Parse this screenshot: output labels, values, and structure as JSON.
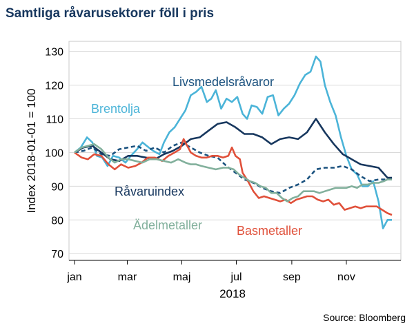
{
  "chart_data": {
    "type": "line",
    "title": "Samtliga råvarusektorer föll i pris",
    "ylabel": "Index 2018-01-01 = 100",
    "xlabel": "2018",
    "ylim": [
      68,
      133
    ],
    "yticks": [
      70,
      80,
      90,
      100,
      110,
      120,
      130
    ],
    "xticks": [
      {
        "label": "jan",
        "day": 0
      },
      {
        "label": "mar",
        "day": 59
      },
      {
        "label": "maj",
        "day": 120
      },
      {
        "label": "jul",
        "day": 181
      },
      {
        "label": "sep",
        "day": 243
      },
      {
        "label": "nov",
        "day": 304
      }
    ],
    "xlim": [
      0,
      365
    ],
    "grid": true,
    "source": "Source: Bloomberg",
    "series": [
      {
        "name": "Brentolja",
        "color": "#4bb4d8",
        "dash": "",
        "points": [
          [
            0,
            100
          ],
          [
            7,
            101.5
          ],
          [
            14,
            104.5
          ],
          [
            20,
            103
          ],
          [
            25,
            99
          ],
          [
            31,
            98.5
          ],
          [
            37,
            96
          ],
          [
            43,
            99
          ],
          [
            50,
            98.5
          ],
          [
            57,
            97
          ],
          [
            63,
            99
          ],
          [
            70,
            101
          ],
          [
            76,
            103
          ],
          [
            83,
            101.5
          ],
          [
            88,
            100.5
          ],
          [
            95,
            99.5
          ],
          [
            100,
            103
          ],
          [
            106,
            106
          ],
          [
            112,
            107.5
          ],
          [
            118,
            110
          ],
          [
            124,
            112.5
          ],
          [
            130,
            117
          ],
          [
            136,
            118
          ],
          [
            142,
            119.5
          ],
          [
            148,
            115
          ],
          [
            153,
            116
          ],
          [
            158,
            118.5
          ],
          [
            164,
            113
          ],
          [
            170,
            116
          ],
          [
            176,
            115
          ],
          [
            182,
            116.5
          ],
          [
            188,
            111.5
          ],
          [
            193,
            110
          ],
          [
            198,
            114
          ],
          [
            204,
            113.5
          ],
          [
            210,
            111.5
          ],
          [
            216,
            116.5
          ],
          [
            222,
            117
          ],
          [
            228,
            111
          ],
          [
            234,
            113
          ],
          [
            240,
            114.5
          ],
          [
            246,
            117
          ],
          [
            252,
            120.5
          ],
          [
            258,
            123
          ],
          [
            264,
            124
          ],
          [
            270,
            128.5
          ],
          [
            275,
            127
          ],
          [
            280,
            120
          ],
          [
            286,
            115
          ],
          [
            292,
            111
          ],
          [
            298,
            104.5
          ],
          [
            304,
            99
          ],
          [
            310,
            95
          ],
          [
            316,
            93.5
          ],
          [
            322,
            90
          ],
          [
            328,
            90
          ],
          [
            334,
            91.5
          ],
          [
            340,
            85.5
          ],
          [
            345,
            77.5
          ],
          [
            350,
            80
          ],
          [
            355,
            80
          ]
        ]
      },
      {
        "name": "Livsmedelsråvaror",
        "color": "#1b527f",
        "dash": "6,4",
        "points": [
          [
            0,
            100
          ],
          [
            10,
            100.5
          ],
          [
            20,
            101.5
          ],
          [
            30,
            99.5
          ],
          [
            40,
            99
          ],
          [
            50,
            101
          ],
          [
            60,
            101.5
          ],
          [
            70,
            102
          ],
          [
            80,
            100.5
          ],
          [
            90,
            101.5
          ],
          [
            100,
            100
          ],
          [
            110,
            102
          ],
          [
            120,
            103
          ],
          [
            130,
            101.5
          ],
          [
            140,
            100
          ],
          [
            150,
            99
          ],
          [
            160,
            98.5
          ],
          [
            170,
            96
          ],
          [
            180,
            94
          ],
          [
            190,
            92
          ],
          [
            200,
            91
          ],
          [
            210,
            89.5
          ],
          [
            220,
            88.5
          ],
          [
            230,
            88
          ],
          [
            240,
            89.5
          ],
          [
            250,
            90.5
          ],
          [
            260,
            92
          ],
          [
            270,
            95
          ],
          [
            280,
            95.5
          ],
          [
            290,
            95.5
          ],
          [
            300,
            96
          ],
          [
            310,
            95
          ],
          [
            320,
            93
          ],
          [
            330,
            91.5
          ],
          [
            340,
            92
          ],
          [
            350,
            92
          ],
          [
            355,
            92.5
          ]
        ]
      },
      {
        "name": "Råvaruindex",
        "color": "#17375e",
        "dash": "",
        "points": [
          [
            0,
            100
          ],
          [
            10,
            101.5
          ],
          [
            20,
            102
          ],
          [
            30,
            100
          ],
          [
            40,
            98
          ],
          [
            50,
            97.5
          ],
          [
            60,
            99
          ],
          [
            70,
            99
          ],
          [
            80,
            98.5
          ],
          [
            90,
            98
          ],
          [
            100,
            99.5
          ],
          [
            110,
            100.5
          ],
          [
            120,
            102
          ],
          [
            130,
            104
          ],
          [
            140,
            104.5
          ],
          [
            150,
            106.5
          ],
          [
            160,
            108.5
          ],
          [
            170,
            109
          ],
          [
            180,
            107.5
          ],
          [
            190,
            105.5
          ],
          [
            200,
            105.5
          ],
          [
            210,
            104.5
          ],
          [
            220,
            102.5
          ],
          [
            230,
            104
          ],
          [
            240,
            104.5
          ],
          [
            250,
            104
          ],
          [
            260,
            106
          ],
          [
            270,
            110
          ],
          [
            280,
            106
          ],
          [
            290,
            102.5
          ],
          [
            300,
            99.5
          ],
          [
            310,
            98
          ],
          [
            320,
            96.5
          ],
          [
            330,
            96
          ],
          [
            340,
            95.5
          ],
          [
            350,
            92.5
          ],
          [
            355,
            92.5
          ]
        ]
      },
      {
        "name": "Basmetaller",
        "color": "#e0503a",
        "dash": "",
        "points": [
          [
            0,
            100
          ],
          [
            8,
            98.5
          ],
          [
            15,
            98
          ],
          [
            22,
            99.5
          ],
          [
            30,
            99
          ],
          [
            38,
            96.5
          ],
          [
            45,
            95
          ],
          [
            52,
            96.5
          ],
          [
            60,
            95.5
          ],
          [
            68,
            96
          ],
          [
            75,
            97
          ],
          [
            82,
            98.5
          ],
          [
            90,
            98.5
          ],
          [
            98,
            97.5
          ],
          [
            105,
            99
          ],
          [
            112,
            100
          ],
          [
            118,
            101
          ],
          [
            122,
            104
          ],
          [
            126,
            102
          ],
          [
            130,
            100
          ],
          [
            136,
            99
          ],
          [
            142,
            98.5
          ],
          [
            148,
            98.5
          ],
          [
            154,
            99
          ],
          [
            160,
            99
          ],
          [
            166,
            98.5
          ],
          [
            172,
            99
          ],
          [
            176,
            101.5
          ],
          [
            180,
            99
          ],
          [
            185,
            98
          ],
          [
            188,
            94
          ],
          [
            194,
            91.5
          ],
          [
            200,
            88.5
          ],
          [
            206,
            86.5
          ],
          [
            212,
            87
          ],
          [
            218,
            86.5
          ],
          [
            224,
            86
          ],
          [
            230,
            85.5
          ],
          [
            236,
            86
          ],
          [
            242,
            85
          ],
          [
            248,
            86
          ],
          [
            254,
            86.5
          ],
          [
            260,
            87
          ],
          [
            266,
            87
          ],
          [
            272,
            86
          ],
          [
            278,
            85.5
          ],
          [
            284,
            86
          ],
          [
            290,
            84.5
          ],
          [
            296,
            85
          ],
          [
            302,
            83
          ],
          [
            308,
            83.5
          ],
          [
            314,
            84
          ],
          [
            320,
            83.5
          ],
          [
            326,
            84
          ],
          [
            332,
            84
          ],
          [
            338,
            84
          ],
          [
            344,
            83
          ],
          [
            350,
            82
          ],
          [
            355,
            81.5
          ]
        ]
      },
      {
        "name": "Ädelmetaller",
        "color": "#82b09c",
        "dash": "",
        "points": [
          [
            0,
            100
          ],
          [
            8,
            101.5
          ],
          [
            15,
            102
          ],
          [
            22,
            102.5
          ],
          [
            30,
            101
          ],
          [
            38,
            98.5
          ],
          [
            45,
            97
          ],
          [
            52,
            98
          ],
          [
            60,
            98
          ],
          [
            68,
            97.5
          ],
          [
            76,
            97
          ],
          [
            84,
            98
          ],
          [
            92,
            98
          ],
          [
            100,
            97.5
          ],
          [
            108,
            97
          ],
          [
            116,
            98
          ],
          [
            124,
            97
          ],
          [
            130,
            96.5
          ],
          [
            136,
            96.5
          ],
          [
            142,
            96
          ],
          [
            150,
            95.5
          ],
          [
            158,
            95
          ],
          [
            166,
            95.5
          ],
          [
            172,
            95.5
          ],
          [
            178,
            95
          ],
          [
            184,
            93.5
          ],
          [
            190,
            92.5
          ],
          [
            196,
            91.5
          ],
          [
            202,
            91
          ],
          [
            208,
            90
          ],
          [
            214,
            89.5
          ],
          [
            220,
            88
          ],
          [
            226,
            88
          ],
          [
            232,
            86.5
          ],
          [
            238,
            85.5
          ],
          [
            244,
            86.5
          ],
          [
            250,
            87
          ],
          [
            256,
            88.5
          ],
          [
            262,
            88.5
          ],
          [
            268,
            88.5
          ],
          [
            274,
            88
          ],
          [
            280,
            88.5
          ],
          [
            286,
            89
          ],
          [
            292,
            89.5
          ],
          [
            298,
            89.5
          ],
          [
            304,
            89.5
          ],
          [
            310,
            90
          ],
          [
            316,
            89.5
          ],
          [
            322,
            90.5
          ],
          [
            328,
            90.5
          ],
          [
            334,
            91
          ],
          [
            340,
            91
          ],
          [
            346,
            91.5
          ],
          [
            350,
            92
          ],
          [
            355,
            92
          ]
        ]
      }
    ],
    "labels": {
      "brentolja": "Brentolja",
      "livsmedel": "Livsmedelsråvaror",
      "ravaruindex": "Råvaruindex",
      "adelmetaller": "Ädelmetaller",
      "basmetaller": "Basmetaller"
    }
  }
}
